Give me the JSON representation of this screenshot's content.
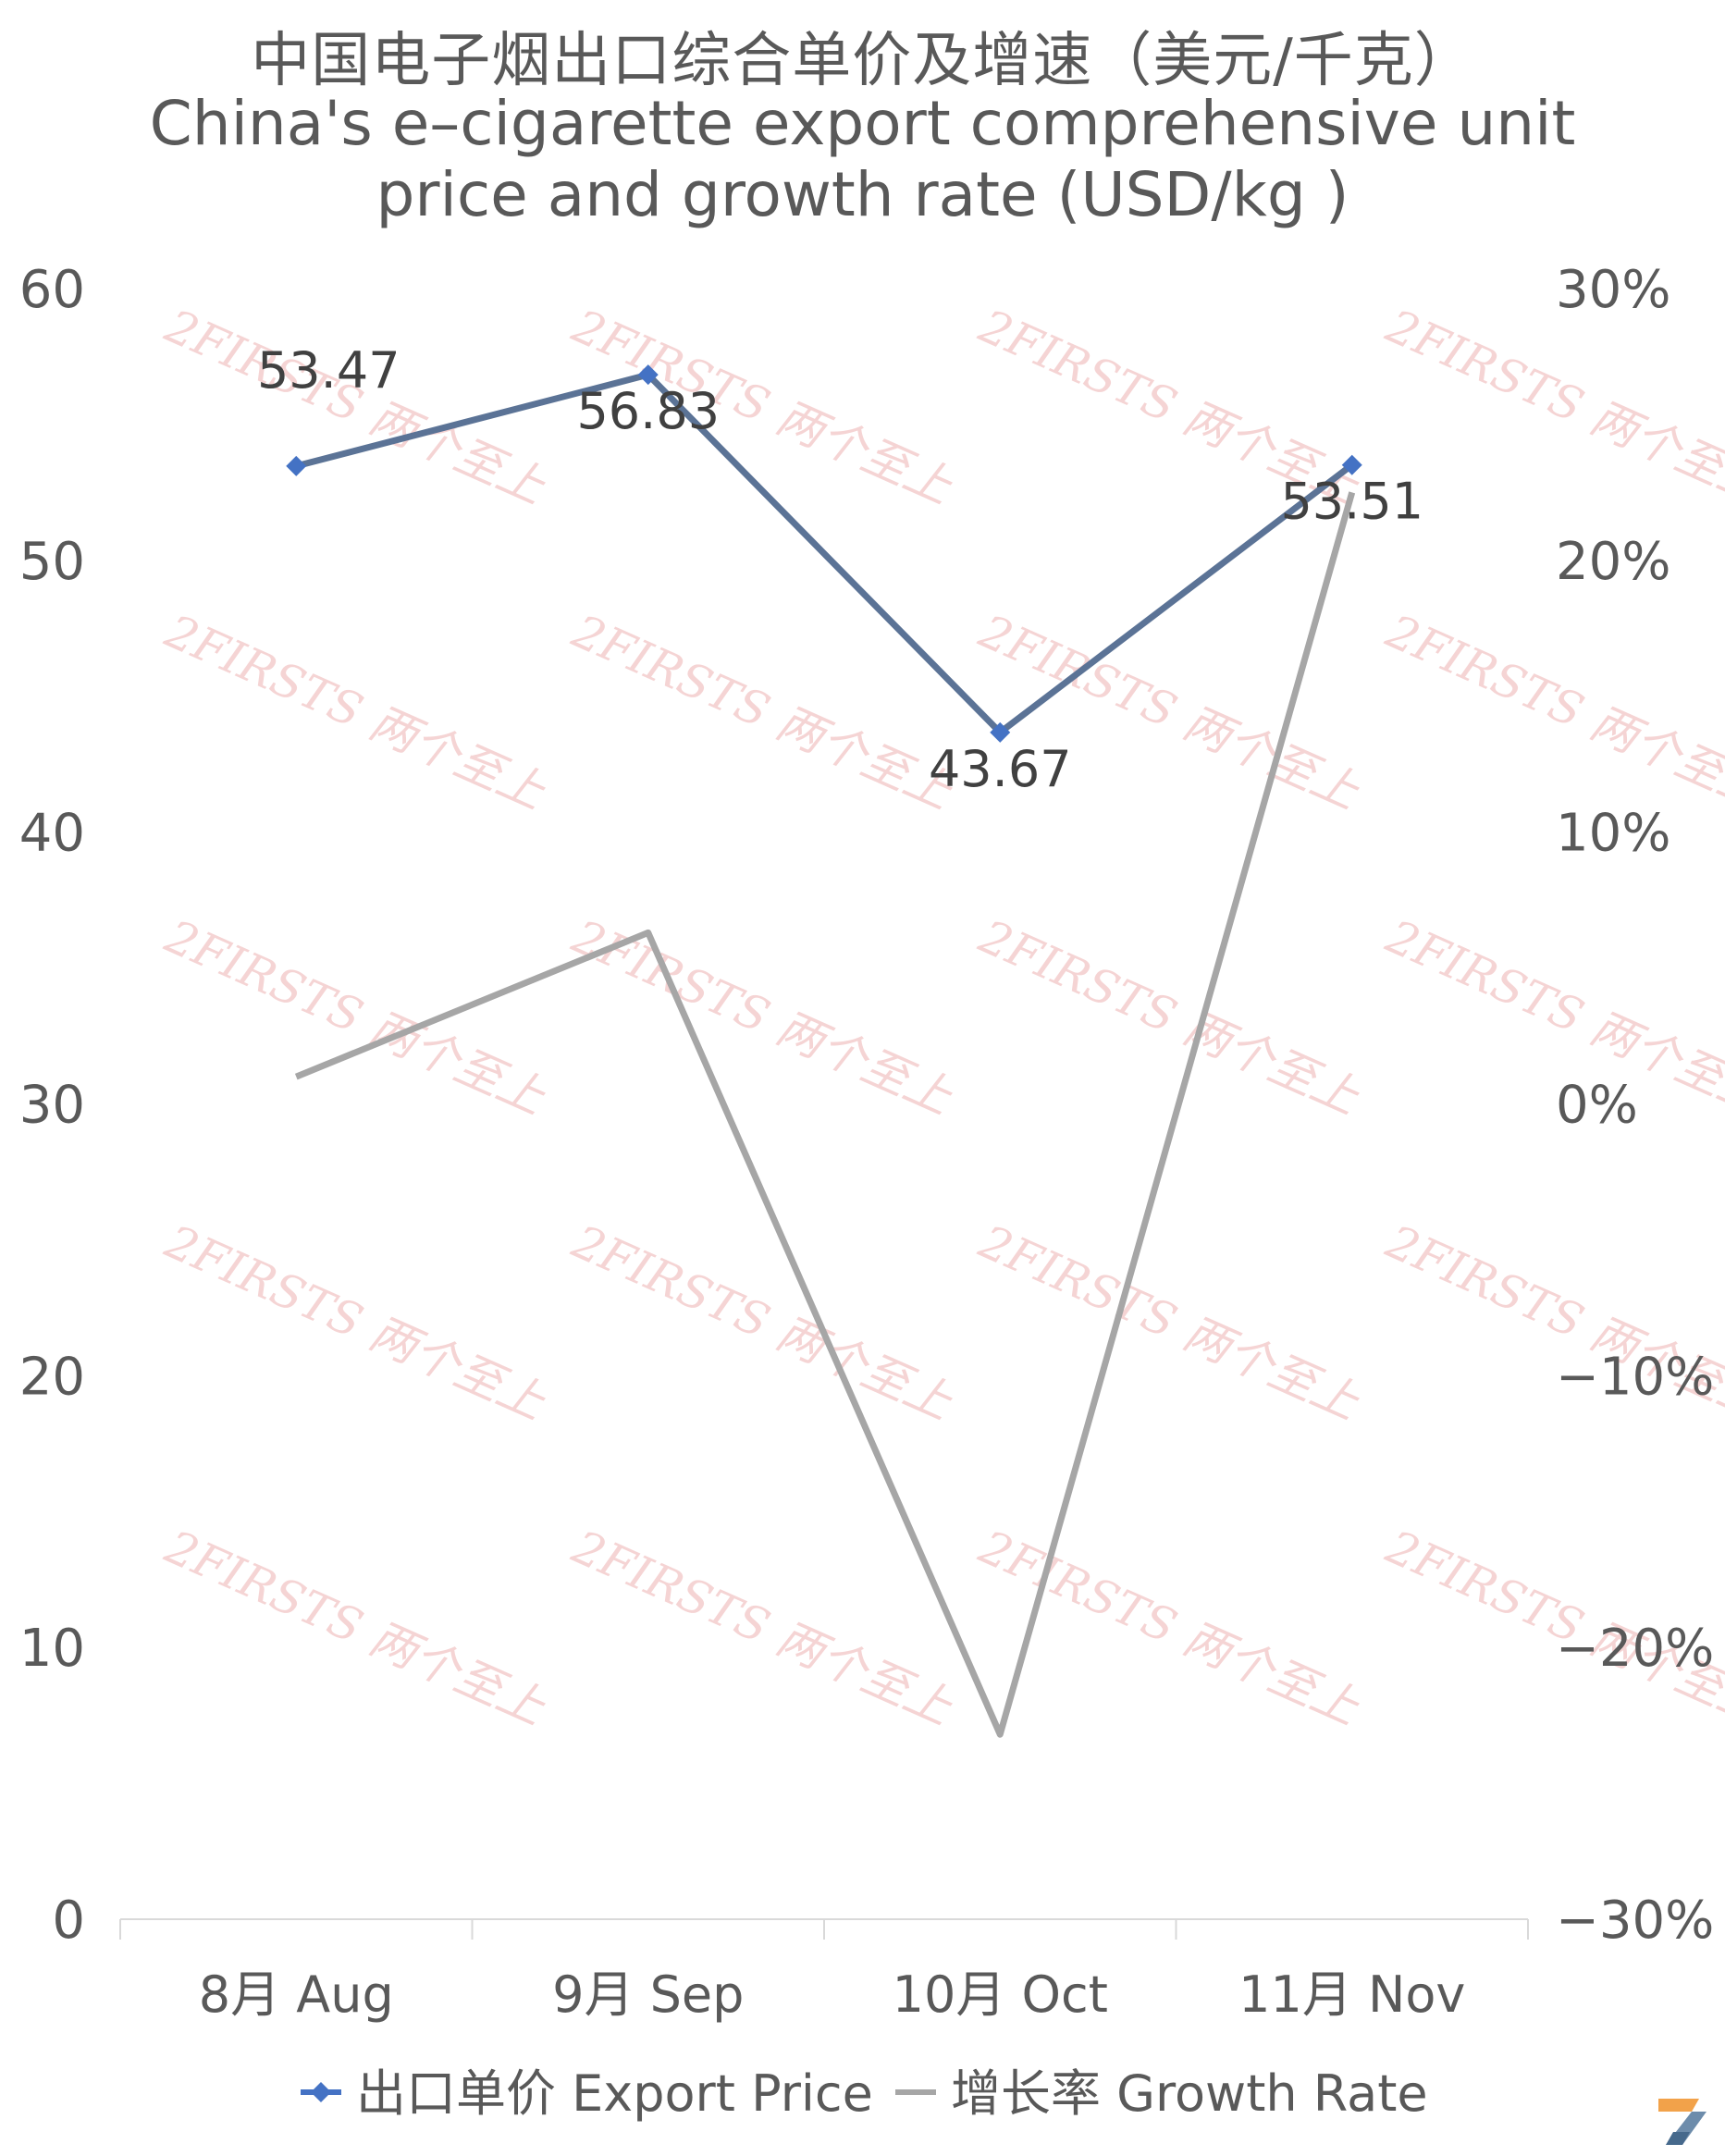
{
  "title": {
    "zh": "中国电子烟出口综合单价及增速（美元/千克）",
    "en_line1": "China's e–cigarette export comprehensive unit",
    "en_line2": "price and growth rate (USD/kg )"
  },
  "watermark_text": "2FIRSTS 两个至上",
  "chart_data": {
    "type": "line",
    "categories": [
      "8月 Aug",
      "9月 Sep",
      "10月 Oct",
      "11月 Nov"
    ],
    "series": [
      {
        "name": "出口单价 Export Price",
        "axis": "left",
        "values": [
          53.47,
          56.83,
          43.67,
          53.51
        ],
        "data_labels": [
          "53.47",
          "56.83",
          "43.67",
          "53.51"
        ],
        "color": "#5b7396",
        "marker_color": "#4472c4",
        "marker": "diamond"
      },
      {
        "name": "增长率 Growth Rate",
        "axis": "right",
        "values": [
          0.01,
          0.063,
          -0.232,
          0.225
        ],
        "color": "#a6a6a6",
        "marker": "none"
      }
    ],
    "y_left": {
      "min": 0,
      "max": 60,
      "ticks": [
        "0",
        "10",
        "20",
        "30",
        "40",
        "50",
        "60"
      ]
    },
    "y_right": {
      "min": -0.3,
      "max": 0.3,
      "ticks": [
        "−30%",
        "−20%",
        "−10%",
        "0%",
        "10%",
        "20%",
        "30%"
      ]
    },
    "grid": false,
    "legend": "bottom"
  }
}
